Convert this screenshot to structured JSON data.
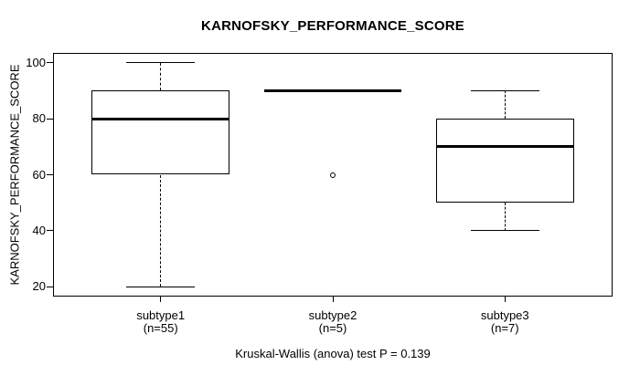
{
  "chart_data": {
    "type": "boxplot",
    "title": "KARNOFSKY_PERFORMANCE_SCORE",
    "ylabel": "KARNOFSKY_PERFORMANCE_SCORE",
    "xlabel": "",
    "ylim": [
      20,
      100
    ],
    "yticks": [
      20,
      40,
      60,
      80,
      100
    ],
    "grid": false,
    "legend": "none",
    "groups": [
      {
        "label": "subtype1",
        "sublabel": "(n=55)",
        "n": 55,
        "whisker_low": 20,
        "q1": 60,
        "median": 80,
        "q3": 90,
        "whisker_high": 100,
        "outliers": []
      },
      {
        "label": "subtype2",
        "sublabel": "(n=5)",
        "n": 5,
        "whisker_low": 90,
        "q1": 90,
        "median": 90,
        "q3": 90,
        "whisker_high": 90,
        "outliers": [
          60
        ]
      },
      {
        "label": "subtype3",
        "sublabel": "(n=7)",
        "n": 7,
        "whisker_low": 40,
        "q1": 50,
        "median": 70,
        "q3": 80,
        "whisker_high": 90,
        "outliers": []
      }
    ],
    "annotation": "Kruskal-Wallis (anova) test P = 0.139"
  },
  "colors": {
    "foreground": "#000000",
    "background": "#ffffff"
  }
}
